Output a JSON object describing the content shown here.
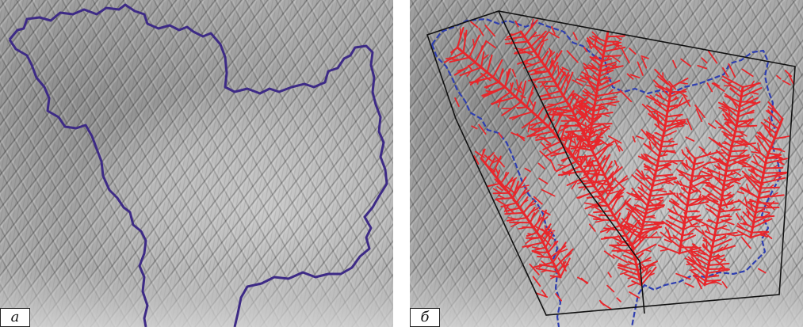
{
  "panels": [
    {
      "id": "a",
      "label": "а",
      "layers": [
        "shaded-relief",
        "basin-boundary"
      ]
    },
    {
      "id": "b",
      "label": "б",
      "layers": [
        "shaded-relief",
        "basin-boundary",
        "gully-network",
        "study-area-polygon"
      ]
    }
  ],
  "colors": {
    "boundary_a": "#3d2a86",
    "boundary_b": "#2f3fb0",
    "gully_network": "#e8262b",
    "study_polygon": "#111111",
    "label_background": "#ffffff"
  }
}
